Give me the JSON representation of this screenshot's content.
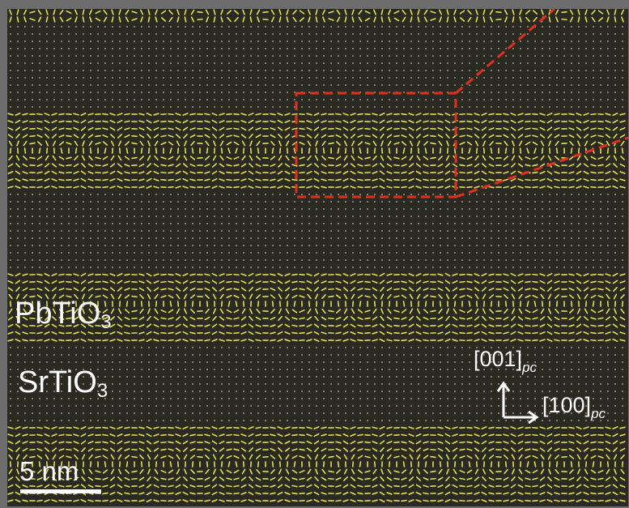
{
  "image": {
    "description_type": "stem-polar-vortex-map",
    "colors": {
      "background": "#2b2a22",
      "vector": "#e0e052",
      "dot": "#8a8a72",
      "highlight_box": "#e03020",
      "label": "#ffffff",
      "frame": "#6d6d6d"
    }
  },
  "labels": {
    "layer_top": {
      "main": "PbTiO",
      "sub": "3"
    },
    "layer_bottom": {
      "main": "SrTiO",
      "sub": "3"
    },
    "axis_vertical": {
      "main": "[001]",
      "sub": "pc"
    },
    "axis_horizontal": {
      "main": "[100]",
      "sub": "pc"
    },
    "scale_bar": "5 nm"
  }
}
